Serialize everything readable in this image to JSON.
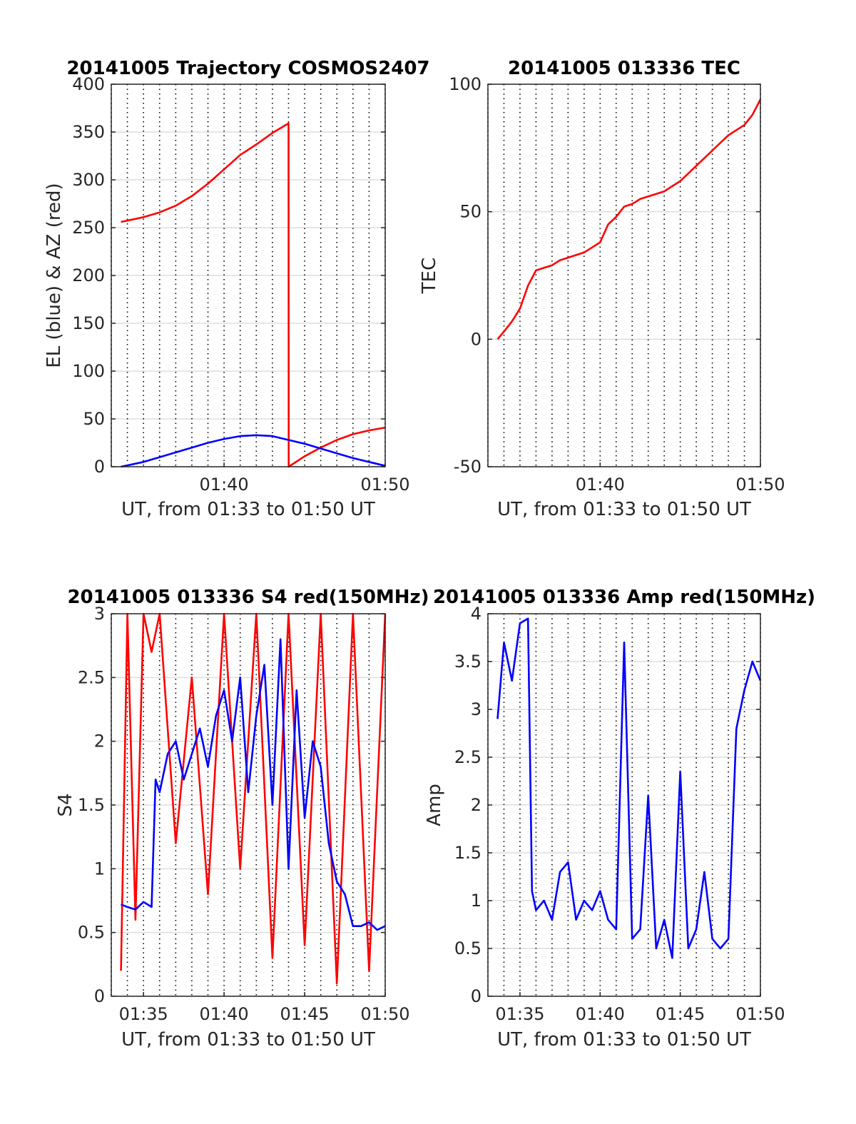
{
  "figure": {
    "background": "#ffffff",
    "colors": {
      "red": "#ff0000",
      "blue": "#0000ff",
      "grid_h": "#dddddd",
      "grid_v": "#000000"
    }
  },
  "chart_data": [
    {
      "id": "trajectory",
      "type": "line",
      "title": "20141005 Trajectory COSMOS2407",
      "xlabel": "UT, from 01:33 to 01:50 UT",
      "ylabel": "EL (blue) & AZ (red)",
      "xlim": [
        "01:33:00",
        "01:50:00"
      ],
      "ylim": [
        0,
        400
      ],
      "yticks": [
        0,
        50,
        100,
        150,
        200,
        250,
        300,
        350,
        400
      ],
      "yticklabels": [
        "0",
        "50",
        "100",
        "150",
        "200",
        "250",
        "300",
        "350",
        "400"
      ],
      "xticks": [
        "01:40",
        "01:50"
      ],
      "grid": "on",
      "series": [
        {
          "color": "#ff0000",
          "points": [
            [
              "01:33:36",
              256
            ],
            [
              "01:35:00",
              261
            ],
            [
              "01:36:00",
              266
            ],
            [
              "01:37:00",
              273
            ],
            [
              "01:38:00",
              283
            ],
            [
              "01:39:00",
              296
            ],
            [
              "01:40:00",
              311
            ],
            [
              "01:41:00",
              326
            ],
            [
              "01:42:00",
              337
            ],
            [
              "01:43:00",
              349
            ],
            [
              "01:44:00",
              359
            ],
            [
              "01:44:00.5",
              0
            ],
            [
              "01:45:00",
              11
            ],
            [
              "01:46:00",
              20
            ],
            [
              "01:47:00",
              28
            ],
            [
              "01:48:00",
              34
            ],
            [
              "01:49:00",
              38
            ],
            [
              "01:50:00",
              41
            ]
          ]
        },
        {
          "color": "#0000ff",
          "points": [
            [
              "01:33:36",
              0
            ],
            [
              "01:35:00",
              5
            ],
            [
              "01:36:00",
              10
            ],
            [
              "01:37:00",
              15
            ],
            [
              "01:38:00",
              20
            ],
            [
              "01:39:00",
              25
            ],
            [
              "01:40:00",
              29
            ],
            [
              "01:41:00",
              32
            ],
            [
              "01:42:00",
              33
            ],
            [
              "01:43:00",
              32
            ],
            [
              "01:44:00",
              28
            ],
            [
              "01:45:00",
              24
            ],
            [
              "01:46:00",
              19
            ],
            [
              "01:47:00",
              14
            ],
            [
              "01:48:00",
              9
            ],
            [
              "01:49:00",
              5
            ],
            [
              "01:50:00",
              1
            ]
          ]
        }
      ]
    },
    {
      "id": "tec",
      "type": "line",
      "title": "20141005 013336 TEC",
      "xlabel": "UT, from 01:33 to 01:50 UT",
      "ylabel": "TEC",
      "xlim": [
        "01:33:00",
        "01:50:00"
      ],
      "ylim": [
        -50,
        100
      ],
      "yticks": [
        -50,
        0,
        50,
        100
      ],
      "yticklabels": [
        "-50",
        "0",
        "50",
        "100"
      ],
      "xticks": [
        "01:40",
        "01:50"
      ],
      "grid": "on",
      "series": [
        {
          "color": "#ff0000",
          "points": [
            [
              "01:33:36",
              0
            ],
            [
              "01:34:00",
              3
            ],
            [
              "01:34:30",
              7
            ],
            [
              "01:35:00",
              12
            ],
            [
              "01:35:30",
              21
            ],
            [
              "01:36:00",
              27
            ],
            [
              "01:36:30",
              28
            ],
            [
              "01:37:00",
              29
            ],
            [
              "01:37:30",
              31
            ],
            [
              "01:38:00",
              32
            ],
            [
              "01:38:30",
              33
            ],
            [
              "01:39:00",
              34
            ],
            [
              "01:39:30",
              36
            ],
            [
              "01:40:00",
              38
            ],
            [
              "01:40:30",
              45
            ],
            [
              "01:41:00",
              48
            ],
            [
              "01:41:30",
              52
            ],
            [
              "01:42:00",
              53
            ],
            [
              "01:42:30",
              55
            ],
            [
              "01:43:00",
              56
            ],
            [
              "01:43:30",
              57
            ],
            [
              "01:44:00",
              58
            ],
            [
              "01:44:30",
              60
            ],
            [
              "01:45:00",
              62
            ],
            [
              "01:45:30",
              65
            ],
            [
              "01:46:00",
              68
            ],
            [
              "01:46:30",
              71
            ],
            [
              "01:47:00",
              74
            ],
            [
              "01:47:30",
              77
            ],
            [
              "01:48:00",
              80
            ],
            [
              "01:48:30",
              82
            ],
            [
              "01:49:00",
              84
            ],
            [
              "01:49:30",
              88
            ],
            [
              "01:50:00",
              94
            ]
          ]
        }
      ]
    },
    {
      "id": "s4",
      "type": "line",
      "title": "20141005 013336 S4 red(150MHz)",
      "xlabel": "UT, from 01:33 to 01:50 UT",
      "ylabel": "S4",
      "xlim": [
        "01:33:00",
        "01:50:00"
      ],
      "ylim": [
        0,
        3
      ],
      "yticks": [
        0,
        0.5,
        1,
        1.5,
        2,
        2.5,
        3
      ],
      "yticklabels": [
        "0",
        "0.5",
        "1",
        "1.5",
        "2",
        "2.5",
        "3"
      ],
      "xticks": [
        "01:35",
        "01:40",
        "01:45",
        "01:50"
      ],
      "grid": "on",
      "series": [
        {
          "color": "#ff0000",
          "points": [
            [
              "01:33:36",
              0.2
            ],
            [
              "01:34:00",
              3
            ],
            [
              "01:34:30",
              0.6
            ],
            [
              "01:35:00",
              3
            ],
            [
              "01:35:30",
              2.7
            ],
            [
              "01:36:00",
              3
            ],
            [
              "01:37:00",
              1.2
            ],
            [
              "01:38:00",
              2.5
            ],
            [
              "01:39:00",
              0.8
            ],
            [
              "01:40:00",
              3
            ],
            [
              "01:41:00",
              1.0
            ],
            [
              "01:42:00",
              3
            ],
            [
              "01:43:00",
              0.3
            ],
            [
              "01:44:00",
              3
            ],
            [
              "01:45:00",
              0.4
            ],
            [
              "01:46:00",
              3
            ],
            [
              "01:47:00",
              0.1
            ],
            [
              "01:48:00",
              3
            ],
            [
              "01:49:00",
              0.2
            ],
            [
              "01:50:00",
              3
            ]
          ]
        },
        {
          "color": "#0000ff",
          "points": [
            [
              "01:33:36",
              0.72
            ],
            [
              "01:34:00",
              0.7
            ],
            [
              "01:34:30",
              0.68
            ],
            [
              "01:35:00",
              0.74
            ],
            [
              "01:35:30",
              0.7
            ],
            [
              "01:35:45",
              1.7
            ],
            [
              "01:36:00",
              1.6
            ],
            [
              "01:36:30",
              1.9
            ],
            [
              "01:37:00",
              2.0
            ],
            [
              "01:37:30",
              1.7
            ],
            [
              "01:38:00",
              1.9
            ],
            [
              "01:38:30",
              2.1
            ],
            [
              "01:39:00",
              1.8
            ],
            [
              "01:39:30",
              2.2
            ],
            [
              "01:40:00",
              2.4
            ],
            [
              "01:40:30",
              2.0
            ],
            [
              "01:41:00",
              2.5
            ],
            [
              "01:41:30",
              1.6
            ],
            [
              "01:42:00",
              2.2
            ],
            [
              "01:42:30",
              2.6
            ],
            [
              "01:43:00",
              1.5
            ],
            [
              "01:43:30",
              2.8
            ],
            [
              "01:44:00",
              1.0
            ],
            [
              "01:44:30",
              2.4
            ],
            [
              "01:45:00",
              1.4
            ],
            [
              "01:45:30",
              2.0
            ],
            [
              "01:46:00",
              1.8
            ],
            [
              "01:46:30",
              1.2
            ],
            [
              "01:47:00",
              0.9
            ],
            [
              "01:47:30",
              0.8
            ],
            [
              "01:48:00",
              0.55
            ],
            [
              "01:48:30",
              0.55
            ],
            [
              "01:49:00",
              0.58
            ],
            [
              "01:49:30",
              0.52
            ],
            [
              "01:50:00",
              0.55
            ]
          ]
        }
      ]
    },
    {
      "id": "amp",
      "type": "line",
      "title": "20141005 013336 Amp red(150MHz)",
      "xlabel": "UT, from 01:33 to 01:50 UT",
      "ylabel": "Amp",
      "xlim": [
        "01:33:00",
        "01:50:00"
      ],
      "ylim": [
        0,
        4
      ],
      "yticks": [
        0,
        0.5,
        1,
        1.5,
        2,
        2.5,
        3,
        3.5,
        4
      ],
      "yticklabels": [
        "0",
        "0.5",
        "1",
        "1.5",
        "2",
        "2.5",
        "3",
        "3.5",
        "4"
      ],
      "xticks": [
        "01:35",
        "01:40",
        "01:45",
        "01:50"
      ],
      "grid": "on",
      "series": [
        {
          "color": "#0000ff",
          "points": [
            [
              "01:33:36",
              2.9
            ],
            [
              "01:34:00",
              3.7
            ],
            [
              "01:34:30",
              3.3
            ],
            [
              "01:35:00",
              3.9
            ],
            [
              "01:35:30",
              3.95
            ],
            [
              "01:35:45",
              1.1
            ],
            [
              "01:36:00",
              0.9
            ],
            [
              "01:36:30",
              1.0
            ],
            [
              "01:37:00",
              0.8
            ],
            [
              "01:37:30",
              1.3
            ],
            [
              "01:38:00",
              1.4
            ],
            [
              "01:38:30",
              0.8
            ],
            [
              "01:39:00",
              1.0
            ],
            [
              "01:39:30",
              0.9
            ],
            [
              "01:40:00",
              1.1
            ],
            [
              "01:40:30",
              0.8
            ],
            [
              "01:41:00",
              0.7
            ],
            [
              "01:41:30",
              3.7
            ],
            [
              "01:42:00",
              0.6
            ],
            [
              "01:42:30",
              0.7
            ],
            [
              "01:43:00",
              2.1
            ],
            [
              "01:43:30",
              0.5
            ],
            [
              "01:44:00",
              0.8
            ],
            [
              "01:44:30",
              0.4
            ],
            [
              "01:45:00",
              2.35
            ],
            [
              "01:45:30",
              0.5
            ],
            [
              "01:46:00",
              0.7
            ],
            [
              "01:46:30",
              1.3
            ],
            [
              "01:47:00",
              0.6
            ],
            [
              "01:47:30",
              0.5
            ],
            [
              "01:48:00",
              0.6
            ],
            [
              "01:48:30",
              2.8
            ],
            [
              "01:49:00",
              3.2
            ],
            [
              "01:49:30",
              3.5
            ],
            [
              "01:50:00",
              3.3
            ]
          ]
        }
      ]
    }
  ]
}
